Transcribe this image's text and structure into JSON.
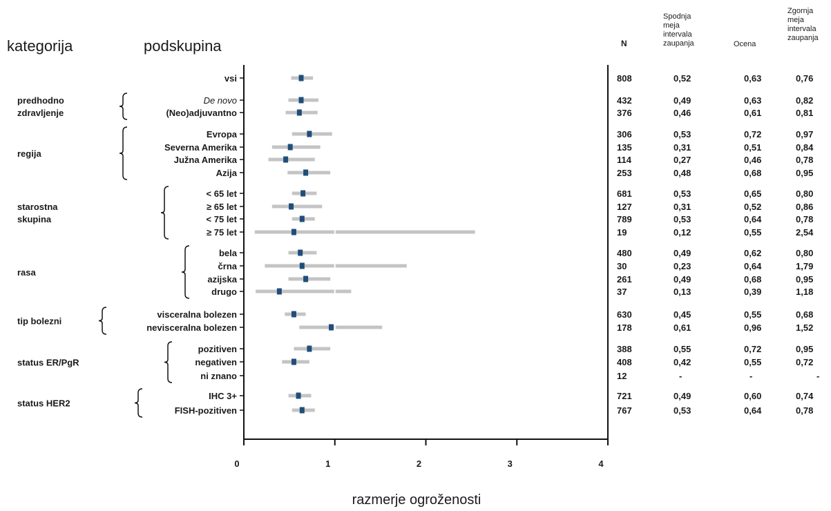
{
  "headers": {
    "category": "kategorija",
    "subgroup": "podskupina",
    "n": "N",
    "lower": [
      "Spodnja",
      "meja",
      "intervala",
      "zaupanja"
    ],
    "estimate": "Ocena",
    "upper": [
      "Zgornja",
      "meja",
      "intervala",
      "zaupanja"
    ]
  },
  "colors": {
    "marker": "#1f4e7a",
    "ci": "#c4c4c4",
    "axis": "#111111"
  },
  "chart_data": {
    "type": "forest",
    "xlabel": "razmerje ogroženosti",
    "xlim": [
      0,
      4
    ],
    "xticks": [
      "0",
      "1",
      "2",
      "3",
      "4"
    ],
    "categories": [
      {
        "label": [
          "predhodno",
          "zdravljenje"
        ],
        "rows": [
          1,
          2
        ]
      },
      {
        "label": [
          "regija"
        ],
        "rows": [
          3,
          6
        ]
      },
      {
        "label": [
          "starostna",
          "skupina"
        ],
        "rows": [
          7,
          10
        ]
      },
      {
        "label": [
          "rasa"
        ],
        "rows": [
          11,
          14
        ]
      },
      {
        "label": [
          "tip bolezni"
        ],
        "rows": [
          15,
          16
        ]
      },
      {
        "label": [
          "status ER/PgR"
        ],
        "rows": [
          17,
          19
        ]
      },
      {
        "label": [
          "status HER2"
        ],
        "rows": [
          20,
          21
        ]
      }
    ],
    "rows": [
      {
        "subgroup": "vsi",
        "n": "808",
        "lower": "0,52",
        "estimate": "0,63",
        "upper": "0,76",
        "lo": 0.52,
        "est": 0.63,
        "hi": 0.76
      },
      {
        "subgroup": "De novo",
        "italic": true,
        "n": "432",
        "lower": "0,49",
        "estimate": "0,63",
        "upper": "0,82",
        "lo": 0.49,
        "est": 0.63,
        "hi": 0.82
      },
      {
        "subgroup": "(Neo)adjuvantno",
        "n": "376",
        "lower": "0,46",
        "estimate": "0,61",
        "upper": "0,81",
        "lo": 0.46,
        "est": 0.61,
        "hi": 0.81
      },
      {
        "subgroup": "Evropa",
        "n": "306",
        "lower": "0,53",
        "estimate": "0,72",
        "upper": "0,97",
        "lo": 0.53,
        "est": 0.72,
        "hi": 0.97
      },
      {
        "subgroup": "Severna Amerika",
        "n": "135",
        "lower": "0,31",
        "estimate": "0,51",
        "upper": "0,84",
        "lo": 0.31,
        "est": 0.51,
        "hi": 0.84
      },
      {
        "subgroup": "Južna Amerika",
        "n": "114",
        "lower": "0,27",
        "estimate": "0,46",
        "upper": "0,78",
        "lo": 0.27,
        "est": 0.46,
        "hi": 0.78
      },
      {
        "subgroup": "Azija",
        "n": "253",
        "lower": "0,48",
        "estimate": "0,68",
        "upper": "0,95",
        "lo": 0.48,
        "est": 0.68,
        "hi": 0.95
      },
      {
        "subgroup": "< 65 let",
        "n": "681",
        "lower": "0,53",
        "estimate": "0,65",
        "upper": "0,80",
        "lo": 0.53,
        "est": 0.65,
        "hi": 0.8
      },
      {
        "subgroup": "≥ 65 let",
        "n": "127",
        "lower": "0,31",
        "estimate": "0,52",
        "upper": "0,86",
        "lo": 0.31,
        "est": 0.52,
        "hi": 0.86
      },
      {
        "subgroup": "< 75 let",
        "n": "789",
        "lower": "0,53",
        "estimate": "0,64",
        "upper": "0,78",
        "lo": 0.53,
        "est": 0.64,
        "hi": 0.78
      },
      {
        "subgroup": "≥ 75 let",
        "n": "19",
        "lower": "0,12",
        "estimate": "0,55",
        "upper": "2,54",
        "lo": 0.12,
        "est": 0.55,
        "hi": 2.54
      },
      {
        "subgroup": "bela",
        "n": "480",
        "lower": "0,49",
        "estimate": "0,62",
        "upper": "0,80",
        "lo": 0.49,
        "est": 0.62,
        "hi": 0.8
      },
      {
        "subgroup": "črna",
        "n": "30",
        "lower": "0,23",
        "estimate": "0,64",
        "upper": "1,79",
        "lo": 0.23,
        "est": 0.64,
        "hi": 1.79
      },
      {
        "subgroup": "azijska",
        "n": "261",
        "lower": "0,49",
        "estimate": "0,68",
        "upper": "0,95",
        "lo": 0.49,
        "est": 0.68,
        "hi": 0.95
      },
      {
        "subgroup": "drugo",
        "n": "37",
        "lower": "0,13",
        "estimate": "0,39",
        "upper": "1,18",
        "lo": 0.13,
        "est": 0.39,
        "hi": 1.18
      },
      {
        "subgroup": "visceralna bolezen",
        "n": "630",
        "lower": "0,45",
        "estimate": "0,55",
        "upper": "0,68",
        "lo": 0.45,
        "est": 0.55,
        "hi": 0.68
      },
      {
        "subgroup": "nevisceralna bolezen",
        "n": "178",
        "lower": "0,61",
        "estimate": "0,96",
        "upper": "1,52",
        "lo": 0.61,
        "est": 0.96,
        "hi": 1.52
      },
      {
        "subgroup": "pozitiven",
        "n": "388",
        "lower": "0,55",
        "estimate": "0,72",
        "upper": "0,95",
        "lo": 0.55,
        "est": 0.72,
        "hi": 0.95
      },
      {
        "subgroup": "negativen",
        "n": "408",
        "lower": "0,42",
        "estimate": "0,55",
        "upper": "0,72",
        "lo": 0.42,
        "est": 0.55,
        "hi": 0.72
      },
      {
        "subgroup": "ni znano",
        "n": "12",
        "lower": "-",
        "estimate": "-",
        "upper": "-",
        "lo": null,
        "est": null,
        "hi": null
      },
      {
        "subgroup": "IHC 3+",
        "n": "721",
        "lower": "0,49",
        "estimate": "0,60",
        "upper": "0,74",
        "lo": 0.49,
        "est": 0.6,
        "hi": 0.74
      },
      {
        "subgroup": "FISH-pozitiven",
        "n": "767",
        "lower": "0,53",
        "estimate": "0,64",
        "upper": "0,78",
        "lo": 0.53,
        "est": 0.64,
        "hi": 0.78
      }
    ]
  }
}
